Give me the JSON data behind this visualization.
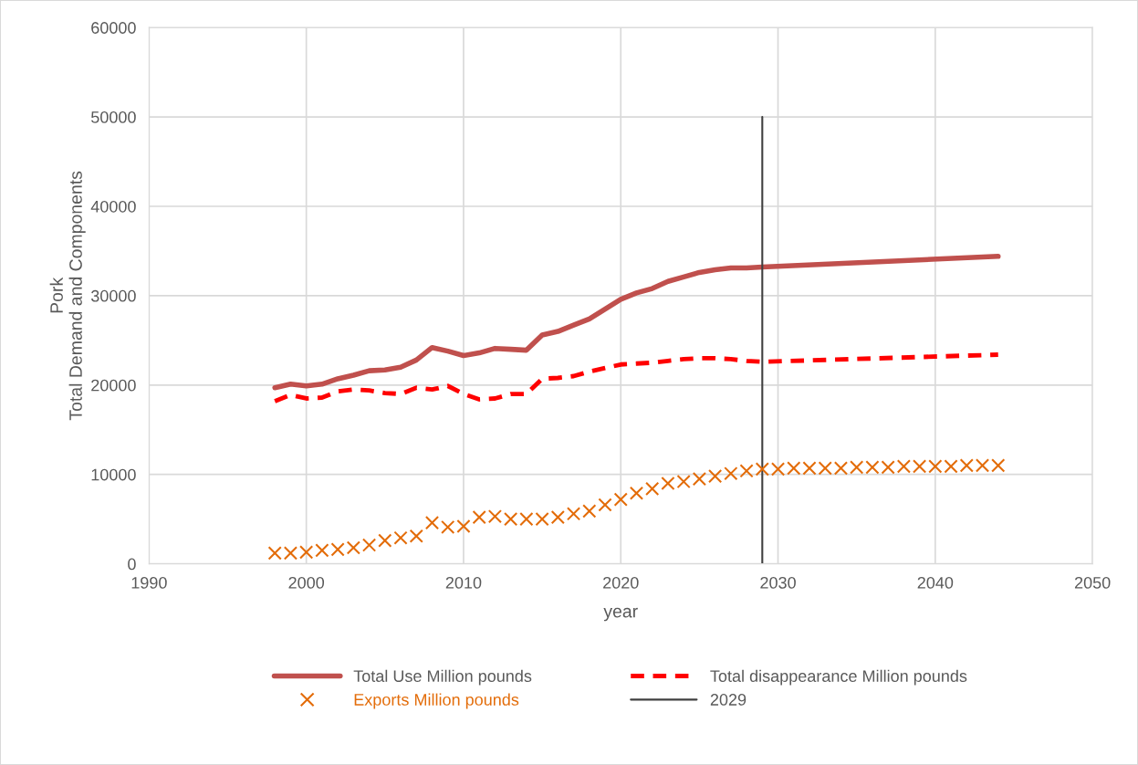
{
  "chart_data": {
    "type": "line",
    "xlabel": "year",
    "ylabel": "Pork\nTotal Demand and Components",
    "xlim": [
      1990,
      2050
    ],
    "xticks": [
      1990,
      2000,
      2010,
      2020,
      2030,
      2040,
      2050
    ],
    "ylim": [
      0,
      60000
    ],
    "yticks": [
      0,
      10000,
      20000,
      30000,
      40000,
      50000,
      60000
    ],
    "grid": true,
    "legend": "bottom",
    "series": [
      {
        "name": "Total Use Million pounds",
        "color": "#c0504d",
        "line_style": "solid",
        "marker": "none",
        "x": [
          1998,
          1999,
          2000,
          2001,
          2002,
          2003,
          2004,
          2005,
          2006,
          2007,
          2008,
          2009,
          2010,
          2011,
          2012,
          2013,
          2014,
          2015,
          2016,
          2017,
          2018,
          2019,
          2020,
          2021,
          2022,
          2023,
          2024,
          2025,
          2026,
          2027,
          2028,
          2029,
          2044
        ],
        "values": [
          19700,
          20100,
          19900,
          20100,
          20700,
          21100,
          21600,
          21700,
          22000,
          22800,
          24200,
          23800,
          23300,
          23600,
          24100,
          24000,
          23900,
          25600,
          26000,
          26700,
          27400,
          28500,
          29600,
          30300,
          30800,
          31600,
          32100,
          32600,
          32900,
          33100,
          33100,
          33200,
          34400
        ]
      },
      {
        "name": "Total disappearance Million pounds",
        "color": "#ff0000",
        "line_style": "dashed",
        "marker": "none",
        "x": [
          1998,
          1999,
          2000,
          2001,
          2002,
          2003,
          2004,
          2005,
          2006,
          2007,
          2008,
          2009,
          2010,
          2011,
          2012,
          2013,
          2014,
          2015,
          2016,
          2017,
          2018,
          2019,
          2020,
          2021,
          2022,
          2023,
          2024,
          2025,
          2026,
          2027,
          2028,
          2029,
          2044
        ],
        "values": [
          18200,
          18900,
          18500,
          18600,
          19300,
          19500,
          19400,
          19100,
          19000,
          19700,
          19500,
          19900,
          19000,
          18400,
          18500,
          19000,
          19000,
          20700,
          20800,
          21000,
          21500,
          21900,
          22300,
          22400,
          22500,
          22700,
          22900,
          23000,
          23000,
          22900,
          22700,
          22600,
          23400
        ]
      },
      {
        "name": "Exports Million pounds",
        "type": "scatter",
        "color": "#e36c09",
        "marker": "cross",
        "x": [
          1998,
          1999,
          2000,
          2001,
          2002,
          2003,
          2004,
          2005,
          2006,
          2007,
          2008,
          2009,
          2010,
          2011,
          2012,
          2013,
          2014,
          2015,
          2016,
          2017,
          2018,
          2019,
          2020,
          2021,
          2022,
          2023,
          2024,
          2025,
          2026,
          2027,
          2028,
          2029,
          2030,
          2031,
          2032,
          2033,
          2034,
          2035,
          2036,
          2037,
          2038,
          2039,
          2040,
          2041,
          2042,
          2043,
          2044
        ],
        "values": [
          1200,
          1200,
          1300,
          1500,
          1600,
          1800,
          2100,
          2600,
          2900,
          3100,
          4600,
          4100,
          4200,
          5200,
          5300,
          5000,
          5000,
          5000,
          5200,
          5600,
          5900,
          6600,
          7200,
          7900,
          8400,
          9000,
          9200,
          9500,
          9800,
          10100,
          10400,
          10600,
          10600,
          10700,
          10700,
          10700,
          10700,
          10800,
          10800,
          10800,
          10900,
          10900,
          10900,
          10900,
          11000,
          11000,
          11000
        ]
      },
      {
        "name": "2029",
        "color": "#404040",
        "line_style": "solid",
        "marker": "none",
        "x": [
          2029,
          2029
        ],
        "values": [
          0,
          50000
        ]
      }
    ]
  }
}
